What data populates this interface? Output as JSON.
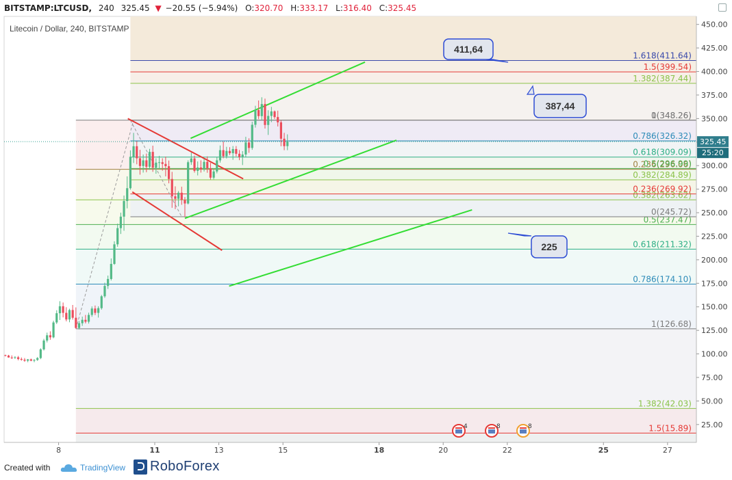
{
  "header": {
    "symbol": "BITSTAMP:LTCUSD,",
    "interval": "240",
    "last": "325.45",
    "change": "−20.55 (−5.94%)",
    "o_label": "O:",
    "o_value": "320.70",
    "h_label": "H:",
    "h_value": "333.17",
    "l_label": "L:",
    "l_value": "316.40",
    "c_label": "C:",
    "c_value": "325.45"
  },
  "chart_title": "Litecoin / Dollar, 240, BITSTAMP",
  "footer": {
    "created_with": "Created with",
    "tradingview": "TradingView",
    "roboforex": "RoboForex"
  },
  "chart_data": {
    "type": "candlestick",
    "y_ticks": [
      25,
      50,
      75,
      100,
      125,
      150,
      175,
      200,
      225,
      250,
      275,
      300,
      325,
      350,
      375,
      400,
      425,
      450
    ],
    "y_tick_labels": [
      "25.00",
      "50.00",
      "75.00",
      "100.00",
      "125.00",
      "150.00",
      "175.00",
      "200.00",
      "225.00",
      "250.00",
      "275.00",
      "300.00",
      "325.00",
      "350.00",
      "375.00",
      "400.00",
      "425.00",
      "450.00"
    ],
    "ylim": [
      6.0,
      458.5
    ],
    "x_ticks": [
      {
        "label": "8",
        "x": -1.5,
        "bold": false
      },
      {
        "label": "11",
        "x": 0,
        "bold": true
      },
      {
        "label": "13",
        "x": 1,
        "bold": false
      },
      {
        "label": "15",
        "x": 2,
        "bold": false
      },
      {
        "label": "18",
        "x": 3.5,
        "bold": true
      },
      {
        "label": "20",
        "x": 4.5,
        "bold": false
      },
      {
        "label": "22",
        "x": 5.5,
        "bold": false
      },
      {
        "label": "25",
        "x": 7,
        "bold": true
      },
      {
        "label": "27",
        "x": 8,
        "bold": false
      }
    ],
    "xlim": [
      -2.35,
      8.45
    ],
    "last_price": {
      "value": 325.45,
      "label": "325.45",
      "countdown": "25:20"
    },
    "candles": [
      [
        -2.33,
        98.6,
        99.2,
        97.4,
        98.2
      ],
      [
        -2.28,
        98.2,
        99.0,
        96.0,
        96.2
      ],
      [
        -2.23,
        96.2,
        98.4,
        94.6,
        95.8
      ],
      [
        -2.18,
        95.8,
        97.6,
        94.8,
        96.4
      ],
      [
        -2.13,
        96.4,
        97.8,
        93.2,
        94.6
      ],
      [
        -2.08,
        94.6,
        96.2,
        92.8,
        93.8
      ],
      [
        -2.03,
        93.8,
        95.6,
        91.6,
        92.8
      ],
      [
        -1.98,
        92.8,
        94.6,
        91.2,
        94.2
      ],
      [
        -1.93,
        94.2,
        95.0,
        92.2,
        92.8
      ],
      [
        -1.88,
        92.8,
        94.4,
        91.2,
        93.6
      ],
      [
        -1.83,
        93.6,
        96.6,
        92.6,
        95.6
      ],
      [
        -1.78,
        95.6,
        106.0,
        94.4,
        104.8
      ],
      [
        -1.73,
        104.8,
        116.0,
        103.6,
        114.2
      ],
      [
        -1.68,
        114.2,
        122.6,
        112.2,
        119.8
      ],
      [
        -1.63,
        119.8,
        124.0,
        115.0,
        117.6
      ],
      [
        -1.58,
        117.6,
        135.2,
        116.6,
        133.4
      ],
      [
        -1.53,
        133.4,
        146.4,
        131.8,
        143.2
      ],
      [
        -1.48,
        143.2,
        156.0,
        136.0,
        150.6
      ],
      [
        -1.43,
        150.6,
        154.6,
        138.8,
        143.6
      ],
      [
        -1.38,
        143.6,
        149.6,
        134.6,
        136.6
      ],
      [
        -1.33,
        136.6,
        148.0,
        133.6,
        146.6
      ],
      [
        -1.28,
        146.6,
        152.0,
        136.4,
        138.4
      ],
      [
        -1.23,
        138.4,
        149.4,
        126.7,
        127.6
      ],
      [
        -1.18,
        127.6,
        135.0,
        126.0,
        132.6
      ],
      [
        -1.13,
        132.6,
        139.6,
        129.8,
        136.2
      ],
      [
        -1.08,
        136.2,
        141.4,
        132.4,
        134.2
      ],
      [
        -1.03,
        134.2,
        143.8,
        132.2,
        141.4
      ],
      [
        -0.98,
        141.4,
        150.4,
        139.4,
        148.2
      ],
      [
        -0.93,
        148.2,
        151.4,
        141.2,
        143.6
      ],
      [
        -0.88,
        143.6,
        150.6,
        138.6,
        148.6
      ],
      [
        -0.83,
        148.6,
        162.6,
        147.0,
        161.2
      ],
      [
        -0.78,
        161.2,
        175.6,
        159.6,
        172.2
      ],
      [
        -0.73,
        172.2,
        183.2,
        169.0,
        179.6
      ],
      [
        -0.68,
        179.6,
        201.4,
        178.0,
        195.6
      ],
      [
        -0.63,
        195.6,
        219.6,
        194.6,
        216.4
      ],
      [
        -0.58,
        216.4,
        238.4,
        213.8,
        233.6
      ],
      [
        -0.53,
        233.6,
        250.0,
        227.4,
        245.8
      ],
      [
        -0.48,
        245.8,
        268.2,
        230.8,
        262.4
      ],
      [
        -0.43,
        262.4,
        288.6,
        254.6,
        276.0
      ],
      [
        -0.38,
        276.0,
        316.2,
        274.4,
        309.4
      ],
      [
        -0.33,
        309.4,
        334.8,
        302.8,
        320.6
      ],
      [
        -0.28,
        320.6,
        326.0,
        301.4,
        307.8
      ],
      [
        -0.23,
        307.8,
        316.8,
        290.4,
        299.6
      ],
      [
        -0.18,
        299.6,
        311.8,
        292.6,
        305.6
      ],
      [
        -0.13,
        305.6,
        312.8,
        293.0,
        298.8
      ],
      [
        -0.08,
        298.8,
        317.8,
        295.6,
        314.6
      ],
      [
        -0.03,
        314.6,
        321.2,
        293.4,
        297.8
      ],
      [
        0.02,
        297.8,
        307.8,
        291.4,
        303.2
      ],
      [
        0.07,
        303.2,
        310.4,
        297.0,
        303.6
      ],
      [
        0.12,
        303.6,
        307.8,
        294.6,
        301.8
      ],
      [
        0.17,
        301.8,
        309.6,
        288.6,
        299.4
      ],
      [
        0.22,
        299.4,
        305.4,
        281.2,
        285.8
      ],
      [
        0.27,
        285.8,
        293.4,
        255.2,
        267.4
      ],
      [
        0.32,
        267.4,
        278.0,
        253.8,
        264.8
      ],
      [
        0.37,
        264.8,
        273.0,
        256.8,
        271.2
      ],
      [
        0.42,
        271.2,
        277.6,
        258.4,
        263.6
      ],
      [
        0.47,
        263.6,
        266.6,
        245.7,
        259.8
      ],
      [
        0.52,
        259.8,
        305.6,
        258.8,
        303.6
      ],
      [
        0.57,
        303.6,
        313.8,
        300.8,
        307.6
      ],
      [
        0.62,
        307.6,
        310.6,
        292.6,
        294.4
      ],
      [
        0.67,
        294.4,
        304.4,
        289.6,
        298.0
      ],
      [
        0.72,
        298.0,
        305.6,
        292.6,
        296.2
      ],
      [
        0.77,
        296.2,
        307.2,
        293.8,
        304.0
      ],
      [
        0.82,
        304.0,
        309.8,
        292.4,
        297.2
      ],
      [
        0.87,
        297.2,
        303.0,
        285.2,
        287.2
      ],
      [
        0.92,
        287.2,
        296.2,
        285.4,
        293.8
      ],
      [
        0.97,
        293.8,
        309.4,
        291.8,
        305.6
      ],
      [
        1.02,
        305.6,
        321.4,
        303.2,
        316.4
      ],
      [
        1.07,
        316.4,
        325.6,
        307.8,
        310.0
      ],
      [
        1.12,
        310.0,
        320.0,
        307.6,
        315.6
      ],
      [
        1.17,
        315.6,
        319.6,
        311.2,
        313.2
      ],
      [
        1.22,
        313.2,
        320.8,
        306.2,
        317.6
      ],
      [
        1.27,
        317.6,
        320.8,
        309.8,
        312.6
      ],
      [
        1.32,
        312.6,
        316.6,
        305.8,
        309.2
      ],
      [
        1.37,
        309.2,
        315.4,
        300.6,
        311.8
      ],
      [
        1.42,
        311.8,
        330.6,
        309.2,
        324.6
      ],
      [
        1.47,
        324.6,
        329.0,
        313.6,
        318.8
      ],
      [
        1.52,
        318.8,
        346.6,
        316.8,
        343.4
      ],
      [
        1.57,
        343.4,
        363.6,
        340.4,
        359.0
      ],
      [
        1.62,
        359.0,
        369.2,
        349.4,
        352.6
      ],
      [
        1.67,
        352.6,
        372.6,
        348.6,
        365.4
      ],
      [
        1.72,
        365.4,
        371.2,
        339.4,
        343.2
      ],
      [
        1.77,
        343.2,
        358.8,
        332.6,
        352.8
      ],
      [
        1.82,
        352.8,
        362.4,
        346.2,
        357.6
      ],
      [
        1.87,
        357.6,
        358.6,
        349.6,
        351.6
      ],
      [
        1.92,
        351.6,
        358.4,
        341.6,
        346.0
      ],
      [
        1.97,
        346.0,
        348.2,
        320.6,
        328.6
      ],
      [
        2.02,
        328.6,
        334.8,
        316.4,
        320.7
      ],
      [
        2.07,
        320.7,
        333.2,
        316.4,
        325.45
      ]
    ],
    "fib_sets": [
      {
        "levels": [
          {
            "ratio": "0",
            "value": 126.68,
            "color": "#7b7b7b",
            "label": "1(126.68)"
          },
          {
            "ratio": "0.236",
            "value": 174.1,
            "color": "#2d8bb8",
            "label": "0.786(174.10)"
          },
          {
            "ratio": "0.382",
            "value": 211.32,
            "color": "#2cae84",
            "label": "0.618(211.32)"
          },
          {
            "ratio": "0.5",
            "value": 237.47,
            "color": "#4caf50",
            "label": "0.5(237.47)"
          },
          {
            "ratio": "0.618",
            "value": 263.62,
            "color": "#8bc34a",
            "label": "0.382(263.62)"
          },
          {
            "ratio": "0.786",
            "value": 296.06,
            "color": "#a08040",
            "label": "0.236(296.06)"
          },
          {
            "ratio": "1",
            "value": 348.26,
            "color": "#7b7b7b",
            "label": "0(348.26)"
          },
          {
            "ratio": "1.382",
            "value": 42.03,
            "color": "#8bc34a",
            "label": "1.382(42.03)"
          },
          {
            "ratio": "1.5",
            "value": 15.89,
            "color": "#e53935",
            "label": "1.5(15.89)"
          }
        ]
      },
      {
        "levels": [
          {
            "value": 245.72,
            "color": "#7b7b7b",
            "label": "0(245.72)"
          },
          {
            "value": 269.92,
            "color": "#e53935",
            "label": "0.236(269.92)"
          },
          {
            "value": 284.89,
            "color": "#8bc34a",
            "label": "0.382(284.89)"
          },
          {
            "value": 296.99,
            "color": "#4caf50",
            "label": "0.5(296.99)"
          },
          {
            "value": 309.09,
            "color": "#2cae84",
            "label": "0.618(309.09)"
          },
          {
            "value": 326.32,
            "color": "#2d8bb8",
            "label": "0.786(326.32)"
          },
          {
            "value": 348.26,
            "color": "#7b7b7b",
            "label": "1(348.26)"
          },
          {
            "value": 387.44,
            "color": "#8bc34a",
            "label": "1.382(387.44)"
          },
          {
            "value": 399.54,
            "color": "#e53935",
            "label": "1.5(399.54)"
          },
          {
            "value": 411.64,
            "color": "#3949ab",
            "label": "1.618(411.64)"
          }
        ]
      }
    ],
    "trend_lines": [
      {
        "color": "#e53935",
        "from": [
          -0.42,
          350.0
        ],
        "to": [
          1.38,
          286.0
        ]
      },
      {
        "color": "#e53935",
        "from": [
          -0.35,
          272.0
        ],
        "to": [
          1.05,
          210.0
        ]
      },
      {
        "color": "#33dd33",
        "from": [
          0.56,
          329.0
        ],
        "to": [
          3.28,
          410.0
        ]
      },
      {
        "color": "#33dd33",
        "from": [
          0.47,
          244.0
        ],
        "to": [
          3.77,
          327.0
        ]
      },
      {
        "color": "#33dd33",
        "from": [
          1.16,
          172.0
        ],
        "to": [
          4.95,
          253.0
        ]
      }
    ],
    "annotations": [
      {
        "text": "411,64",
        "anchor_value": 411.64
      },
      {
        "text": "387,44",
        "anchor_value": 387.44
      },
      {
        "text": "225",
        "anchor_value": 225
      }
    ],
    "event_markers": [
      "4",
      "8",
      "8"
    ]
  }
}
